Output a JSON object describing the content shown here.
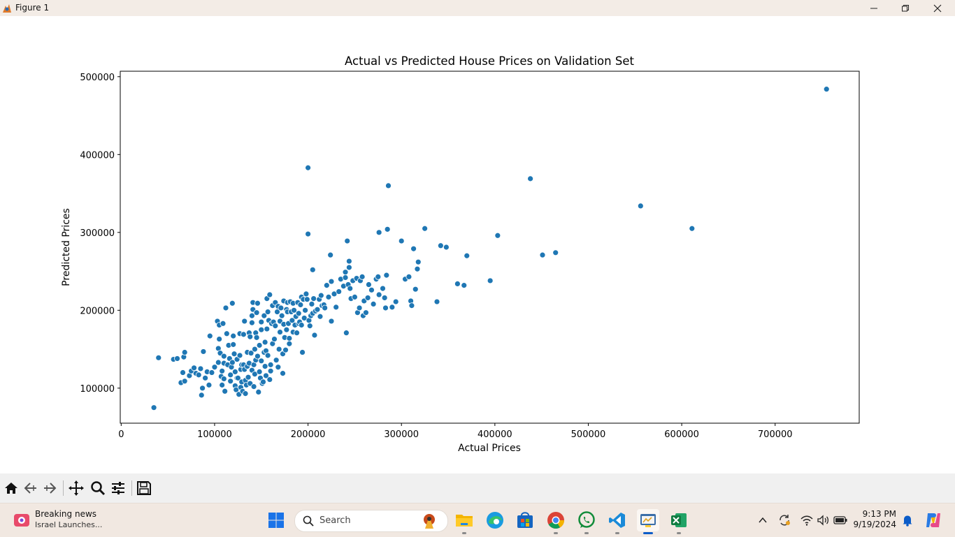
{
  "window": {
    "title": "Figure 1"
  },
  "chart_data": {
    "type": "scatter",
    "title": "Actual vs Predicted House Prices on Validation Set",
    "xlabel": "Actual Prices",
    "ylabel": "Predicted Prices",
    "xlim": [
      -1000,
      790000
    ],
    "ylim": [
      55000,
      507000
    ],
    "xticks": [
      0,
      100000,
      200000,
      300000,
      400000,
      500000,
      600000,
      700000
    ],
    "yticks": [
      100000,
      200000,
      300000,
      400000,
      500000
    ],
    "color": "#1f77b4",
    "grid": false,
    "points": [
      [
        35000,
        75000
      ],
      [
        40000,
        139000
      ],
      [
        56000,
        137000
      ],
      [
        60000,
        138000
      ],
      [
        64000,
        107000
      ],
      [
        66000,
        120000
      ],
      [
        67000,
        140000
      ],
      [
        68000,
        146000
      ],
      [
        68000,
        109000
      ],
      [
        73000,
        116000
      ],
      [
        75000,
        122000
      ],
      [
        78000,
        126000
      ],
      [
        80000,
        119000
      ],
      [
        83000,
        117000
      ],
      [
        85000,
        125000
      ],
      [
        86000,
        91000
      ],
      [
        87000,
        100000
      ],
      [
        88000,
        147000
      ],
      [
        90000,
        113000
      ],
      [
        92000,
        121000
      ],
      [
        94000,
        104000
      ],
      [
        95000,
        167000
      ],
      [
        97000,
        120000
      ],
      [
        100000,
        127000
      ],
      [
        103000,
        186000
      ],
      [
        104000,
        151000
      ],
      [
        104000,
        133000
      ],
      [
        105000,
        163000
      ],
      [
        105000,
        181000
      ],
      [
        106000,
        145000
      ],
      [
        107000,
        115000
      ],
      [
        108000,
        104000
      ],
      [
        108000,
        122000
      ],
      [
        109000,
        183000
      ],
      [
        110000,
        141000
      ],
      [
        110000,
        132000
      ],
      [
        110000,
        112000
      ],
      [
        111000,
        96000
      ],
      [
        112000,
        203000
      ],
      [
        113000,
        170000
      ],
      [
        114000,
        130000
      ],
      [
        115000,
        155000
      ],
      [
        116000,
        138000
      ],
      [
        117000,
        117000
      ],
      [
        117000,
        109000
      ],
      [
        118000,
        127000
      ],
      [
        119000,
        133000
      ],
      [
        119000,
        209000
      ],
      [
        120000,
        156000
      ],
      [
        120000,
        167000
      ],
      [
        121000,
        144000
      ],
      [
        122000,
        103000
      ],
      [
        122000,
        121000
      ],
      [
        123000,
        98000
      ],
      [
        124000,
        113000
      ],
      [
        124000,
        137000
      ],
      [
        125000,
        113000
      ],
      [
        126000,
        92000
      ],
      [
        127000,
        170000
      ],
      [
        127000,
        142000
      ],
      [
        128000,
        101000
      ],
      [
        128000,
        124000
      ],
      [
        129000,
        108000
      ],
      [
        129000,
        130000
      ],
      [
        130000,
        96000
      ],
      [
        131000,
        169000
      ],
      [
        131000,
        130000
      ],
      [
        132000,
        186000
      ],
      [
        132000,
        124000
      ],
      [
        133000,
        110000
      ],
      [
        133000,
        93000
      ],
      [
        134000,
        104000
      ],
      [
        135000,
        146000
      ],
      [
        135000,
        128000
      ],
      [
        136000,
        114000
      ],
      [
        137000,
        171000
      ],
      [
        137000,
        132000
      ],
      [
        138000,
        166000
      ],
      [
        138000,
        106000
      ],
      [
        139000,
        145000
      ],
      [
        140000,
        184000
      ],
      [
        140000,
        193000
      ],
      [
        140000,
        123000
      ],
      [
        141000,
        201000
      ],
      [
        141000,
        210000
      ],
      [
        142000,
        130000
      ],
      [
        142000,
        102000
      ],
      [
        143000,
        150000
      ],
      [
        143000,
        118000
      ],
      [
        144000,
        136000
      ],
      [
        144000,
        171000
      ],
      [
        145000,
        197000
      ],
      [
        145000,
        165000
      ],
      [
        146000,
        209000
      ],
      [
        146000,
        141000
      ],
      [
        147000,
        95000
      ],
      [
        148000,
        155000
      ],
      [
        148000,
        121000
      ],
      [
        149000,
        113000
      ],
      [
        150000,
        135000
      ],
      [
        150000,
        175000
      ],
      [
        150000,
        185000
      ],
      [
        151000,
        106000
      ],
      [
        152000,
        108000
      ],
      [
        153000,
        146000
      ],
      [
        153000,
        193000
      ],
      [
        154000,
        159000
      ],
      [
        154000,
        128000
      ],
      [
        155000,
        148000
      ],
      [
        155000,
        116000
      ],
      [
        156000,
        176000
      ],
      [
        156000,
        215000
      ],
      [
        157000,
        142000
      ],
      [
        157000,
        198000
      ],
      [
        158000,
        187000
      ],
      [
        159000,
        220000
      ],
      [
        159000,
        111000
      ],
      [
        160000,
        130000
      ],
      [
        160000,
        122000
      ],
      [
        161000,
        183000
      ],
      [
        162000,
        157000
      ],
      [
        162000,
        206000
      ],
      [
        163000,
        185000
      ],
      [
        164000,
        163000
      ],
      [
        165000,
        210000
      ],
      [
        165000,
        180000
      ],
      [
        166000,
        136000
      ],
      [
        167000,
        198000
      ],
      [
        168000,
        205000
      ],
      [
        168000,
        127000
      ],
      [
        169000,
        150000
      ],
      [
        170000,
        172000
      ],
      [
        170000,
        186000
      ],
      [
        171000,
        203000
      ],
      [
        172000,
        193000
      ],
      [
        173000,
        119000
      ],
      [
        173000,
        144000
      ],
      [
        174000,
        212000
      ],
      [
        174000,
        182000
      ],
      [
        175000,
        165000
      ],
      [
        176000,
        149000
      ],
      [
        177000,
        201000
      ],
      [
        177000,
        175000
      ],
      [
        178000,
        210000
      ],
      [
        178000,
        198000
      ],
      [
        179000,
        183000
      ],
      [
        180000,
        164000
      ],
      [
        180000,
        157000
      ],
      [
        181000,
        211000
      ],
      [
        182000,
        198000
      ],
      [
        183000,
        187000
      ],
      [
        184000,
        172000
      ],
      [
        184000,
        209000
      ],
      [
        185000,
        200000
      ],
      [
        186000,
        181000
      ],
      [
        187000,
        192000
      ],
      [
        188000,
        171000
      ],
      [
        189000,
        210000
      ],
      [
        190000,
        183000
      ],
      [
        190000,
        196000
      ],
      [
        191000,
        185000
      ],
      [
        192000,
        207000
      ],
      [
        193000,
        217000
      ],
      [
        193000,
        181000
      ],
      [
        194000,
        146000
      ],
      [
        195000,
        214000
      ],
      [
        196000,
        190000
      ],
      [
        197000,
        200000
      ],
      [
        198000,
        221000
      ],
      [
        199000,
        214000
      ],
      [
        200000,
        298000
      ],
      [
        200000,
        383000
      ],
      [
        201000,
        187000
      ],
      [
        202000,
        180000
      ],
      [
        203000,
        193000
      ],
      [
        204000,
        208000
      ],
      [
        205000,
        196000
      ],
      [
        205000,
        252000
      ],
      [
        206000,
        215000
      ],
      [
        207000,
        168000
      ],
      [
        208000,
        199000
      ],
      [
        210000,
        201000
      ],
      [
        212000,
        214000
      ],
      [
        213000,
        192000
      ],
      [
        214000,
        219000
      ],
      [
        215000,
        206000
      ],
      [
        217000,
        207000
      ],
      [
        218000,
        203000
      ],
      [
        220000,
        232000
      ],
      [
        222000,
        217000
      ],
      [
        224000,
        271000
      ],
      [
        225000,
        237000
      ],
      [
        225000,
        186000
      ],
      [
        228000,
        221000
      ],
      [
        230000,
        204000
      ],
      [
        233000,
        224000
      ],
      [
        235000,
        240000
      ],
      [
        238000,
        231000
      ],
      [
        240000,
        242000
      ],
      [
        240000,
        249000
      ],
      [
        241000,
        171000
      ],
      [
        242000,
        289000
      ],
      [
        243000,
        233000
      ],
      [
        244000,
        255000
      ],
      [
        244000,
        263000
      ],
      [
        245000,
        228000
      ],
      [
        246000,
        215000
      ],
      [
        248000,
        238000
      ],
      [
        250000,
        217000
      ],
      [
        252000,
        241000
      ],
      [
        253000,
        197000
      ],
      [
        255000,
        203000
      ],
      [
        256000,
        238000
      ],
      [
        258000,
        243000
      ],
      [
        259000,
        193000
      ],
      [
        260000,
        212000
      ],
      [
        262000,
        197000
      ],
      [
        264000,
        216000
      ],
      [
        265000,
        233000
      ],
      [
        268000,
        226000
      ],
      [
        270000,
        208000
      ],
      [
        273000,
        240000
      ],
      [
        275000,
        243000
      ],
      [
        276000,
        300000
      ],
      [
        276000,
        220000
      ],
      [
        280000,
        228000
      ],
      [
        282000,
        216000
      ],
      [
        283000,
        203000
      ],
      [
        284000,
        245000
      ],
      [
        285000,
        304000
      ],
      [
        286000,
        360000
      ],
      [
        290000,
        204000
      ],
      [
        294000,
        211000
      ],
      [
        300000,
        289000
      ],
      [
        304000,
        240000
      ],
      [
        308000,
        243000
      ],
      [
        310000,
        212000
      ],
      [
        311000,
        206000
      ],
      [
        313000,
        279000
      ],
      [
        315000,
        227000
      ],
      [
        317000,
        253000
      ],
      [
        318000,
        262000
      ],
      [
        325000,
        305000
      ],
      [
        338000,
        211000
      ],
      [
        342000,
        283000
      ],
      [
        348000,
        281000
      ],
      [
        360000,
        234000
      ],
      [
        367000,
        232000
      ],
      [
        370000,
        270000
      ],
      [
        395000,
        238000
      ],
      [
        403000,
        296000
      ],
      [
        438000,
        369000
      ],
      [
        451000,
        271000
      ],
      [
        465000,
        274000
      ],
      [
        556000,
        334000
      ],
      [
        611000,
        305000
      ],
      [
        755000,
        484000
      ]
    ]
  },
  "toolbar": {
    "icons": [
      "home-icon",
      "back-icon",
      "forward-icon",
      "pan-icon",
      "zoom-icon",
      "configure-icon",
      "save-icon"
    ]
  },
  "taskbar": {
    "news_title": "Breaking news",
    "news_subtitle": "Israel Launches...",
    "search_placeholder": "Search",
    "time": "9:13 PM",
    "date": "9/19/2024"
  }
}
